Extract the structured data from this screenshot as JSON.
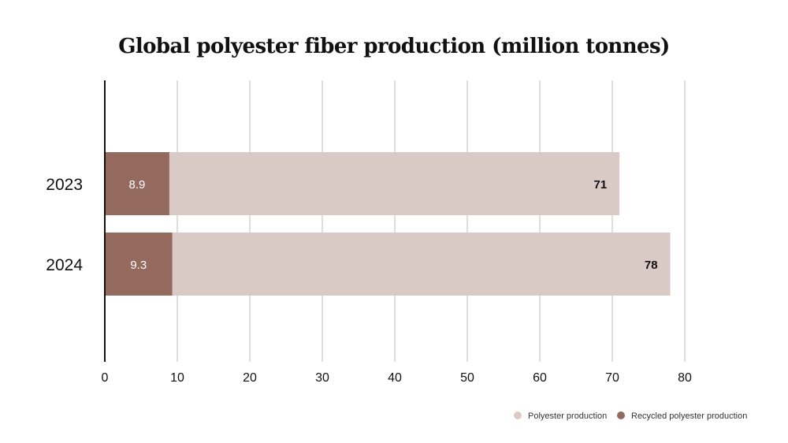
{
  "chart_data": {
    "type": "bar",
    "orientation": "horizontal",
    "stacked": false,
    "overlay": true,
    "title": "Global polyester fiber production (million tonnes)",
    "categories": [
      "2023",
      "2024"
    ],
    "series": [
      {
        "name": "Polyester production",
        "values": [
          71,
          78
        ],
        "color": "#d9cac6",
        "label_color": "#111111"
      },
      {
        "name": "Recycled polyester production",
        "values": [
          8.9,
          9.3
        ],
        "color": "#946a5e",
        "label_color": "#ffffff"
      }
    ],
    "xlim": [
      0,
      80
    ],
    "xticks": [
      0,
      10,
      20,
      30,
      40,
      50,
      60,
      70,
      80
    ],
    "xlabel": "",
    "ylabel": "",
    "grid": "vertical",
    "legend_position": "bottom-right",
    "colors": {
      "axis": "#111111",
      "grid": "#bdbdbd",
      "text": "#111111"
    }
  }
}
